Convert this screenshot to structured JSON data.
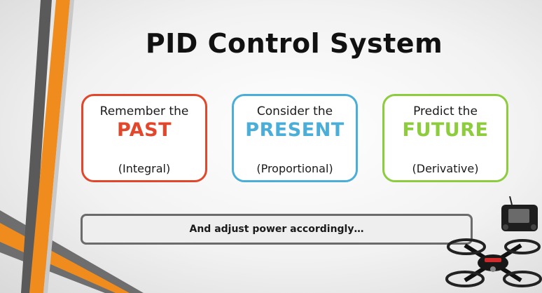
{
  "slide": {
    "title": "PID Control System",
    "cards": [
      {
        "lead": "Remember the",
        "highlight": "PAST",
        "term": "(Integral)",
        "color": "#e2462b"
      },
      {
        "lead": "Consider the",
        "highlight": "PRESENT",
        "term": "(Proportional)",
        "color": "#4aaed8"
      },
      {
        "lead": "Predict the",
        "highlight": "FUTURE",
        "term": "(Derivative)",
        "color": "#8ccc3d"
      }
    ],
    "footer_text": "And adjust power accordingly…",
    "images": {
      "corner_image": "quadcopter-drone-with-remote-controller"
    },
    "colors": {
      "stripe_orange": "#f08c1e",
      "stripe_gray": "#555555",
      "bar_border": "#6b6b6b"
    }
  }
}
